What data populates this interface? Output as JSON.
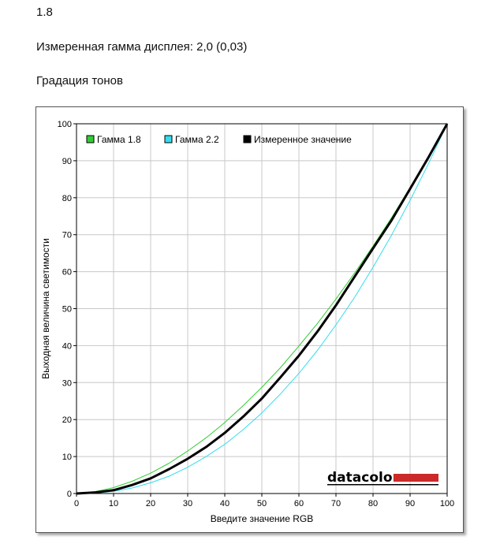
{
  "header": {
    "value_line": "1.8",
    "measured_gamma": "Измеренная гамма дисплея: 2,0 (0,03)",
    "section_title": "Градация тонов"
  },
  "logo": {
    "text": "datacolor",
    "bar_color": "#cc2a2a"
  },
  "chart_data": {
    "type": "line",
    "xlabel": "Введите значение RGB",
    "ylabel": "Выходная величина светимости",
    "xlim": [
      0,
      100
    ],
    "ylim": [
      0,
      100
    ],
    "xticks": [
      "0",
      "10",
      "20",
      "30",
      "40",
      "50",
      "60",
      "70",
      "80",
      "90",
      "100"
    ],
    "yticks": [
      "0",
      "10",
      "20",
      "30",
      "40",
      "50",
      "60",
      "70",
      "80",
      "90",
      "100"
    ],
    "grid": true,
    "legend_position": "top-left",
    "x": [
      0,
      5,
      10,
      15,
      20,
      25,
      30,
      35,
      40,
      45,
      50,
      55,
      60,
      65,
      70,
      75,
      80,
      85,
      90,
      95,
      100
    ],
    "series": [
      {
        "name": "Гамма 1.8",
        "color": "#33cc33",
        "width": 1,
        "values": [
          0,
          0.5,
          1.6,
          3.3,
          5.5,
          8.2,
          11.5,
          15.1,
          19.2,
          23.8,
          28.7,
          34.0,
          39.9,
          46.0,
          52.6,
          59.6,
          66.9,
          74.6,
          82.7,
          91.2,
          100
        ]
      },
      {
        "name": "Гамма 2.2",
        "color": "#33ddee",
        "width": 1,
        "values": [
          0,
          0.1,
          0.6,
          1.5,
          2.9,
          4.7,
          7.1,
          10.0,
          13.3,
          17.3,
          21.8,
          26.9,
          32.5,
          38.7,
          45.6,
          53.0,
          61.2,
          69.9,
          79.3,
          89.3,
          100
        ]
      },
      {
        "name": "Измеренное значение",
        "color": "#000000",
        "width": 3,
        "values": [
          0,
          0.3,
          0.9,
          2.3,
          4.1,
          6.6,
          9.4,
          12.6,
          16.4,
          20.8,
          25.7,
          31.4,
          37.3,
          43.8,
          50.9,
          58.6,
          66.3,
          73.9,
          82.4,
          91.0,
          100
        ]
      }
    ]
  }
}
